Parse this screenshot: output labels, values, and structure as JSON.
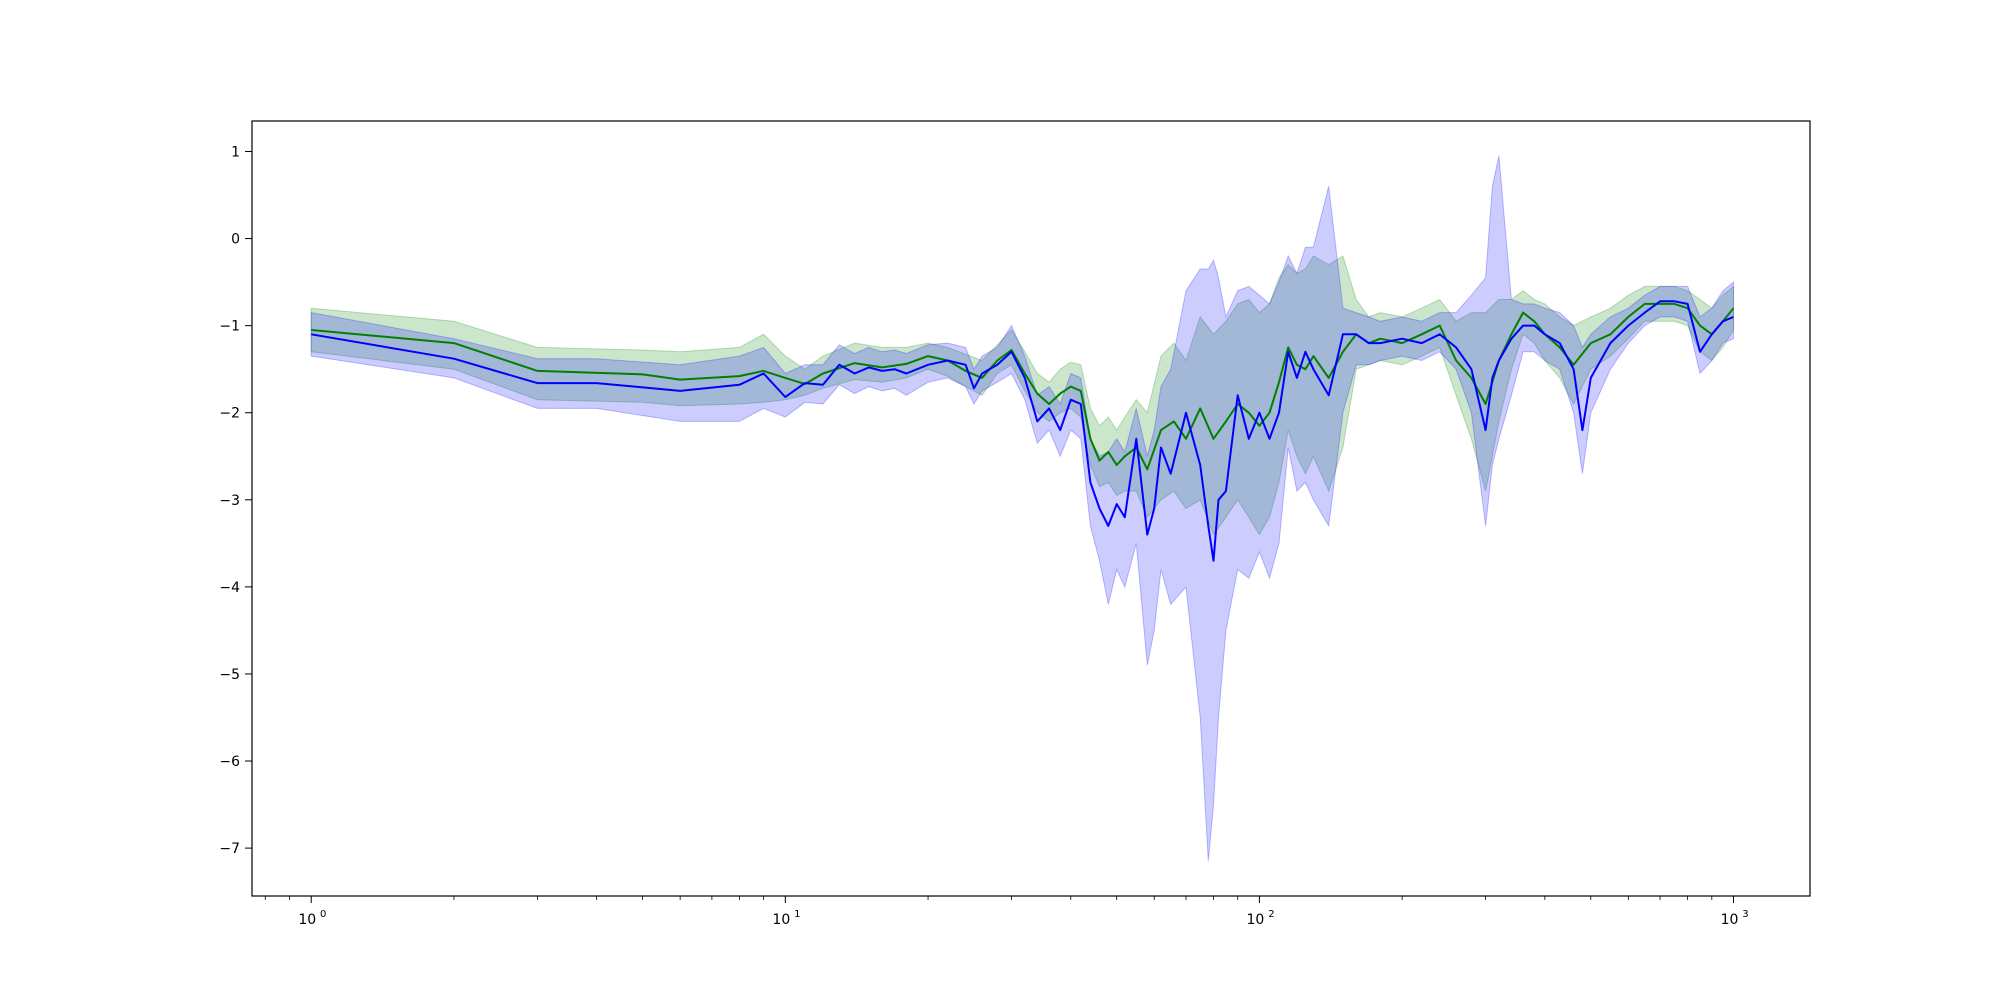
{
  "chart_data": {
    "type": "line",
    "title": "",
    "xlabel": "",
    "ylabel": "",
    "xscale": "log",
    "xlim": [
      0.75,
      1450
    ],
    "ylim": [
      -7.55,
      1.35
    ],
    "grid": false,
    "xticks": [
      {
        "value": 1,
        "base": "10",
        "exp": "0"
      },
      {
        "value": 10,
        "base": "10",
        "exp": "1"
      },
      {
        "value": 100,
        "base": "10",
        "exp": "2"
      },
      {
        "value": 1000,
        "base": "10",
        "exp": "3"
      }
    ],
    "yticks": [
      {
        "value": 1,
        "label": "1"
      },
      {
        "value": 0,
        "label": "0"
      },
      {
        "value": -1,
        "label": "−1"
      },
      {
        "value": -2,
        "label": "−2"
      },
      {
        "value": -3,
        "label": "−3"
      },
      {
        "value": -4,
        "label": "−4"
      },
      {
        "value": -5,
        "label": "−5"
      },
      {
        "value": -6,
        "label": "−6"
      },
      {
        "value": -7,
        "label": "−7"
      }
    ],
    "series": [
      {
        "color": "#008000",
        "band_color": "#008000",
        "band_opacity": 0.2,
        "x": [
          1,
          2,
          3,
          5,
          6,
          8,
          9,
          10,
          11,
          12,
          14,
          16,
          18,
          20,
          22,
          24,
          26,
          28,
          30,
          32,
          34,
          36,
          38,
          40,
          42,
          44,
          46,
          48,
          50,
          52,
          55,
          58,
          62,
          66,
          70,
          75,
          80,
          85,
          90,
          95,
          100,
          105,
          110,
          115,
          120,
          125,
          130,
          140,
          150,
          160,
          170,
          180,
          200,
          220,
          240,
          260,
          280,
          300,
          320,
          340,
          360,
          380,
          400,
          430,
          460,
          500,
          550,
          600,
          650,
          700,
          750,
          800,
          850,
          900,
          950,
          1000
        ],
        "values": [
          -1.05,
          -1.2,
          -1.52,
          -1.56,
          -1.62,
          -1.58,
          -1.52,
          -1.6,
          -1.67,
          -1.55,
          -1.43,
          -1.48,
          -1.44,
          -1.35,
          -1.4,
          -1.52,
          -1.6,
          -1.4,
          -1.28,
          -1.55,
          -1.78,
          -1.9,
          -1.78,
          -1.7,
          -1.75,
          -2.3,
          -2.55,
          -2.45,
          -2.6,
          -2.5,
          -2.4,
          -2.65,
          -2.2,
          -2.1,
          -2.3,
          -1.95,
          -2.3,
          -2.1,
          -1.9,
          -2.0,
          -2.15,
          -2.0,
          -1.65,
          -1.25,
          -1.45,
          -1.5,
          -1.35,
          -1.6,
          -1.3,
          -1.1,
          -1.2,
          -1.15,
          -1.2,
          -1.1,
          -1.0,
          -1.4,
          -1.6,
          -1.9,
          -1.4,
          -1.1,
          -0.85,
          -0.95,
          -1.1,
          -1.25,
          -1.45,
          -1.2,
          -1.1,
          -0.9,
          -0.75,
          -0.75,
          -0.75,
          -0.8,
          -1.0,
          -1.1,
          -0.95,
          -0.8
        ],
        "lower": [
          -1.3,
          -1.5,
          -1.85,
          -1.88,
          -1.92,
          -1.9,
          -1.88,
          -1.85,
          -1.8,
          -1.72,
          -1.62,
          -1.65,
          -1.6,
          -1.5,
          -1.58,
          -1.7,
          -1.8,
          -1.55,
          -1.45,
          -1.75,
          -2.0,
          -2.1,
          -2.0,
          -1.95,
          -2.05,
          -2.6,
          -2.85,
          -2.8,
          -2.95,
          -2.9,
          -2.9,
          -3.2,
          -3.0,
          -2.9,
          -3.1,
          -3.0,
          -3.4,
          -3.2,
          -3.0,
          -3.2,
          -3.4,
          -3.2,
          -2.8,
          -2.2,
          -2.5,
          -2.7,
          -2.5,
          -2.9,
          -2.4,
          -1.5,
          -1.45,
          -1.4,
          -1.45,
          -1.35,
          -1.25,
          -1.8,
          -2.3,
          -2.9,
          -2.1,
          -1.5,
          -1.1,
          -1.2,
          -1.4,
          -1.6,
          -1.9,
          -1.5,
          -1.35,
          -1.15,
          -0.95,
          -0.95,
          -0.95,
          -1.0,
          -1.3,
          -1.4,
          -1.25,
          -1.05
        ],
        "upper": [
          -0.8,
          -0.95,
          -1.25,
          -1.28,
          -1.3,
          -1.25,
          -1.1,
          -1.35,
          -1.5,
          -1.35,
          -1.2,
          -1.25,
          -1.25,
          -1.2,
          -1.25,
          -1.33,
          -1.4,
          -1.22,
          -1.05,
          -1.3,
          -1.55,
          -1.65,
          -1.5,
          -1.42,
          -1.45,
          -1.95,
          -2.15,
          -2.05,
          -2.2,
          -2.05,
          -1.85,
          -2.0,
          -1.35,
          -1.2,
          -1.4,
          -0.9,
          -1.1,
          -0.95,
          -0.75,
          -0.7,
          -0.85,
          -0.75,
          -0.45,
          -0.3,
          -0.4,
          -0.35,
          -0.2,
          -0.3,
          -0.2,
          -0.7,
          -0.9,
          -0.85,
          -0.9,
          -0.8,
          -0.7,
          -0.95,
          -0.85,
          -0.85,
          -0.7,
          -0.7,
          -0.6,
          -0.7,
          -0.75,
          -0.9,
          -1.0,
          -0.9,
          -0.8,
          -0.65,
          -0.55,
          -0.55,
          -0.55,
          -0.6,
          -0.7,
          -0.8,
          -0.65,
          -0.55
        ]
      },
      {
        "color": "#0000ff",
        "band_color": "#0000ff",
        "band_opacity": 0.2,
        "x": [
          1,
          2,
          3,
          4,
          6,
          8,
          9,
          10,
          11,
          12,
          13,
          14,
          15,
          16,
          17,
          18,
          20,
          22,
          24,
          25,
          26,
          28,
          30,
          32,
          34,
          36,
          38,
          40,
          42,
          44,
          46,
          48,
          50,
          52,
          55,
          58,
          60,
          62,
          65,
          70,
          75,
          78,
          80,
          82,
          85,
          90,
          95,
          100,
          105,
          110,
          115,
          120,
          125,
          130,
          140,
          150,
          160,
          170,
          180,
          200,
          220,
          240,
          260,
          280,
          300,
          310,
          320,
          340,
          360,
          380,
          400,
          430,
          460,
          480,
          500,
          550,
          600,
          650,
          700,
          750,
          800,
          850,
          900,
          950,
          1000
        ],
        "values": [
          -1.1,
          -1.38,
          -1.66,
          -1.66,
          -1.75,
          -1.68,
          -1.55,
          -1.82,
          -1.66,
          -1.68,
          -1.45,
          -1.55,
          -1.48,
          -1.52,
          -1.5,
          -1.55,
          -1.45,
          -1.4,
          -1.45,
          -1.72,
          -1.55,
          -1.45,
          -1.3,
          -1.6,
          -2.1,
          -1.95,
          -2.2,
          -1.85,
          -1.9,
          -2.8,
          -3.1,
          -3.3,
          -3.05,
          -3.2,
          -2.3,
          -3.4,
          -3.1,
          -2.4,
          -2.7,
          -2.0,
          -2.6,
          -3.3,
          -3.7,
          -3.0,
          -2.9,
          -1.8,
          -2.3,
          -2.0,
          -2.3,
          -2.0,
          -1.3,
          -1.6,
          -1.3,
          -1.5,
          -1.8,
          -1.1,
          -1.1,
          -1.2,
          -1.2,
          -1.15,
          -1.2,
          -1.1,
          -1.25,
          -1.5,
          -2.2,
          -1.6,
          -1.4,
          -1.15,
          -1.0,
          -1.0,
          -1.1,
          -1.2,
          -1.5,
          -2.2,
          -1.6,
          -1.2,
          -1.0,
          -0.85,
          -0.72,
          -0.72,
          -0.75,
          -1.3,
          -1.1,
          -0.95,
          -0.9
        ],
        "lower": [
          -1.35,
          -1.6,
          -1.95,
          -1.95,
          -2.1,
          -2.1,
          -1.95,
          -2.05,
          -1.88,
          -1.9,
          -1.68,
          -1.78,
          -1.7,
          -1.75,
          -1.72,
          -1.8,
          -1.65,
          -1.6,
          -1.7,
          -1.9,
          -1.75,
          -1.65,
          -1.55,
          -1.85,
          -2.35,
          -2.2,
          -2.5,
          -2.2,
          -2.3,
          -3.3,
          -3.7,
          -4.2,
          -3.8,
          -4.0,
          -3.5,
          -4.9,
          -4.5,
          -3.8,
          -4.2,
          -4.0,
          -5.5,
          -7.15,
          -6.5,
          -5.5,
          -4.5,
          -3.8,
          -3.9,
          -3.6,
          -3.9,
          -3.5,
          -2.4,
          -2.9,
          -2.8,
          -3.0,
          -3.3,
          -2.0,
          -1.45,
          -1.45,
          -1.4,
          -1.35,
          -1.4,
          -1.3,
          -1.5,
          -2.0,
          -3.3,
          -2.6,
          -2.3,
          -1.8,
          -1.3,
          -1.3,
          -1.4,
          -1.5,
          -2.0,
          -2.7,
          -2.0,
          -1.5,
          -1.2,
          -1.0,
          -0.9,
          -0.9,
          -0.95,
          -1.55,
          -1.4,
          -1.2,
          -1.15
        ],
        "upper": [
          -0.85,
          -1.15,
          -1.38,
          -1.38,
          -1.45,
          -1.35,
          -1.25,
          -1.55,
          -1.45,
          -1.45,
          -1.22,
          -1.32,
          -1.25,
          -1.3,
          -1.28,
          -1.32,
          -1.22,
          -1.2,
          -1.25,
          -1.5,
          -1.35,
          -1.25,
          -1.0,
          -1.35,
          -1.8,
          -1.7,
          -1.9,
          -1.55,
          -1.6,
          -2.3,
          -2.5,
          -2.45,
          -2.3,
          -2.45,
          -1.95,
          -2.5,
          -2.2,
          -1.7,
          -1.5,
          -0.6,
          -0.35,
          -0.35,
          -0.25,
          -0.45,
          -0.9,
          -0.6,
          -0.55,
          -0.65,
          -0.75,
          -0.5,
          -0.2,
          -0.4,
          -0.1,
          -0.1,
          0.6,
          -0.8,
          -0.85,
          -0.9,
          -0.95,
          -0.9,
          -0.95,
          -0.85,
          -0.85,
          -0.65,
          -0.45,
          0.6,
          0.95,
          -0.7,
          -0.75,
          -0.75,
          -0.8,
          -0.85,
          -1.0,
          -1.25,
          -1.1,
          -0.9,
          -0.8,
          -0.65,
          -0.55,
          -0.55,
          -0.55,
          -0.9,
          -0.8,
          -0.6,
          -0.5
        ]
      }
    ]
  }
}
